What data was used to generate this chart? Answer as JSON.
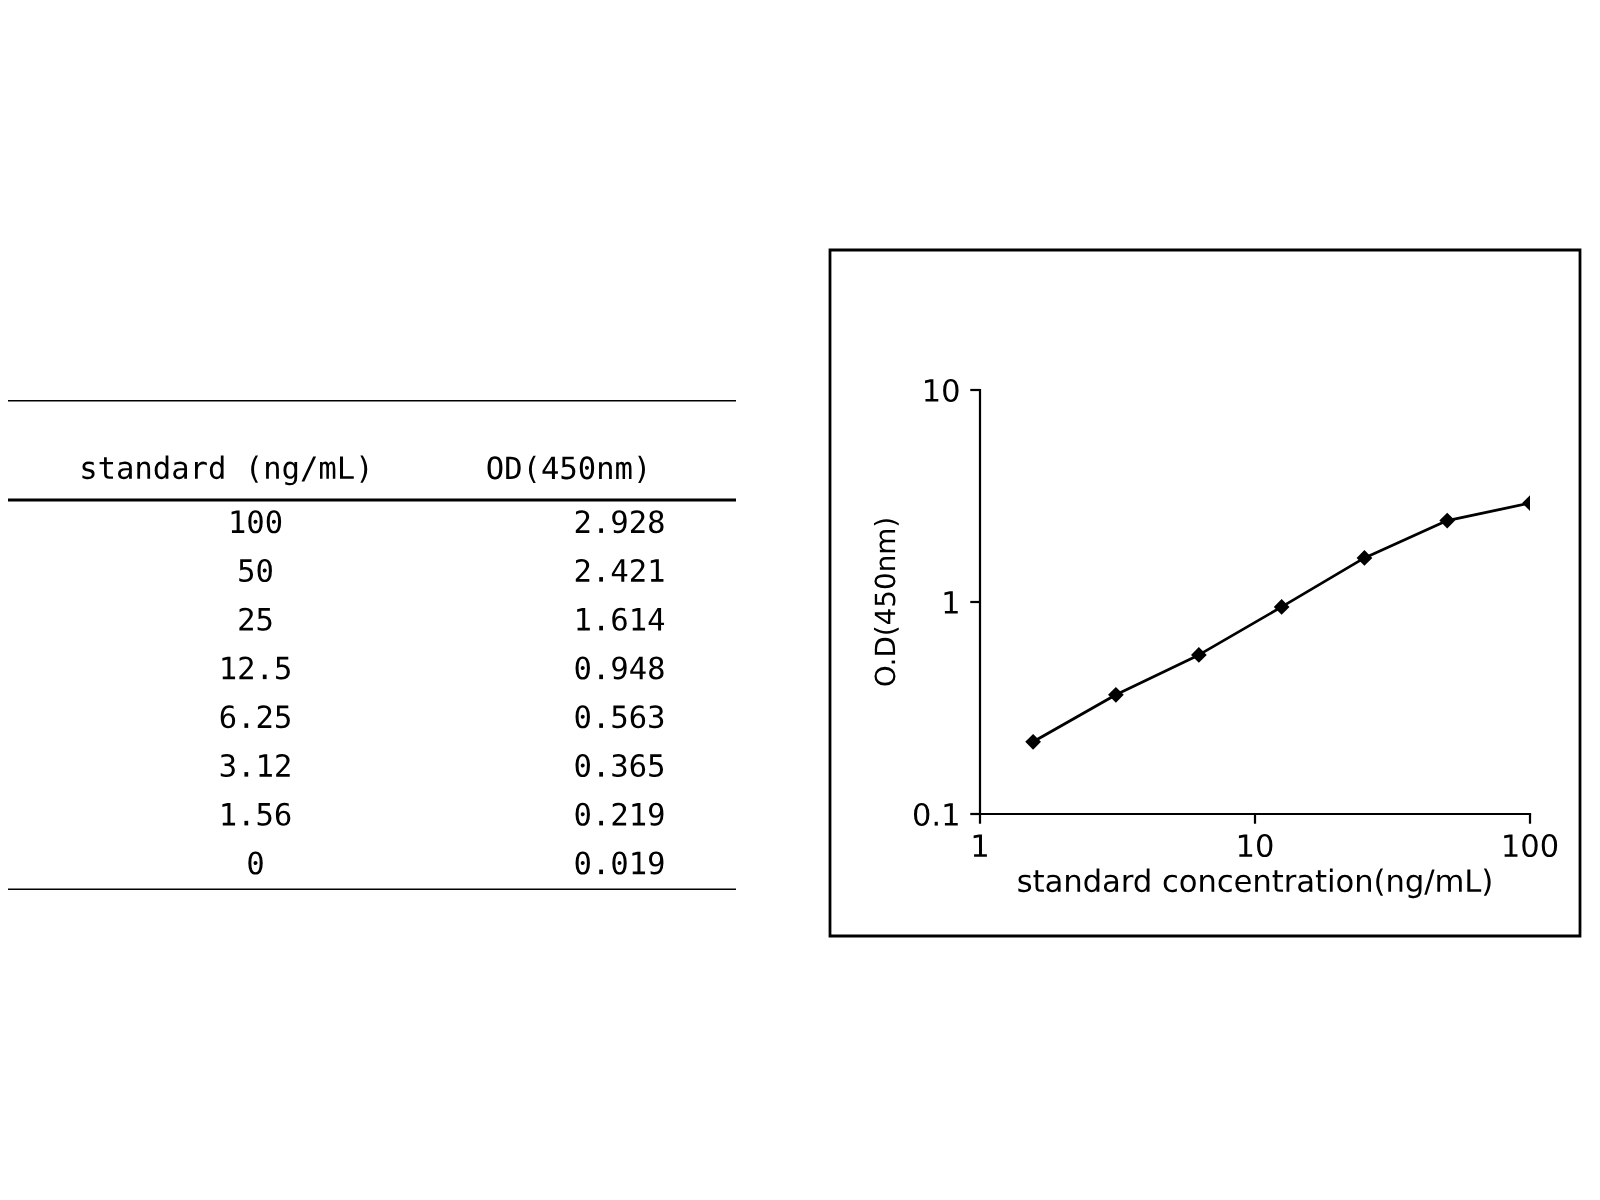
{
  "chart_data": [
    {
      "type": "other",
      "xlabel": "standard (ng/mL)",
      "ylabel": "OD(450nm)",
      "categories": [
        "100",
        "50",
        "25",
        "12.5",
        "6.25",
        "3.12",
        "1.56",
        "0"
      ],
      "values": [
        2.928,
        2.421,
        1.614,
        0.948,
        0.563,
        0.365,
        0.219,
        0.019
      ],
      "data_labels": true
    },
    {
      "type": "line",
      "log": "xy",
      "xlabel": "standard concentration(ng/mL)",
      "ylabel": "O.D(450nm)",
      "series": [
        {
          "color": "#000000",
          "x": [
            1.56,
            3.12,
            6.25,
            12.5,
            25,
            50,
            100
          ],
          "values": [
            0.219,
            0.365,
            0.563,
            0.948,
            1.614,
            2.421,
            2.928
          ]
        }
      ],
      "xlim": [
        1,
        100
      ],
      "ylim": [
        0.1,
        10
      ],
      "xticks": [
        1,
        10,
        100
      ],
      "yticks": [
        0.1,
        1,
        10
      ],
      "marker": "diamond",
      "line_style": "solid",
      "grid": false,
      "legend": false
    }
  ]
}
